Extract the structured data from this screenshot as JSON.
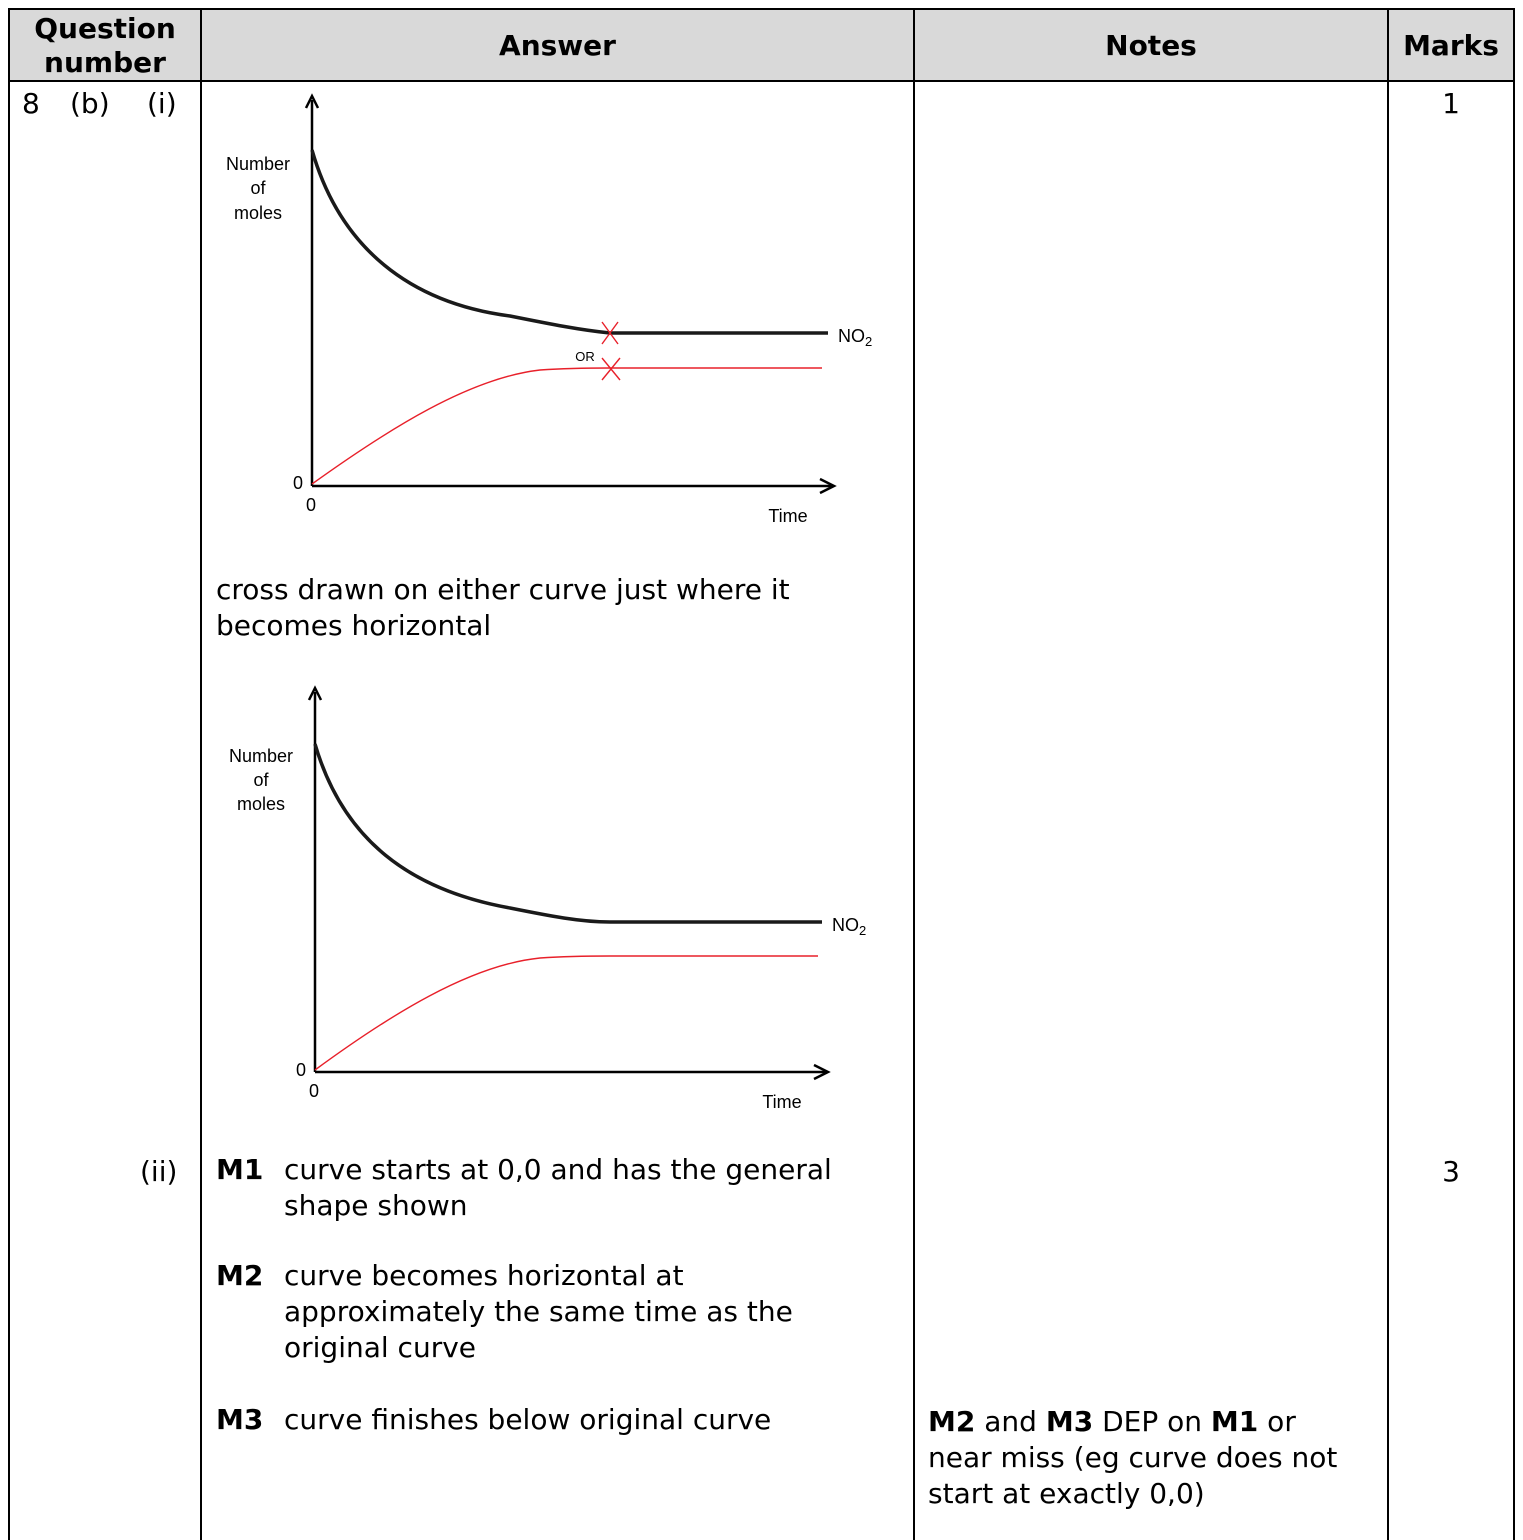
{
  "header": {
    "question_number": "Question number",
    "answer": "Answer",
    "notes": "Notes",
    "marks": "Marks"
  },
  "question": {
    "number": "8",
    "part": "(b)",
    "sub_i": "(i)",
    "sub_ii": "(ii)"
  },
  "graph1": {
    "ylabel": [
      "Number",
      "of",
      "moles"
    ],
    "xlabel": "Time",
    "origin_y": "0",
    "origin_x": "0",
    "series_label": "NO",
    "series_subscript": "2",
    "or_label": "OR"
  },
  "graph2": {
    "ylabel": [
      "Number",
      "of",
      "moles"
    ],
    "xlabel": "Time",
    "origin_y": "0",
    "origin_x": "0",
    "series_label": "NO",
    "series_subscript": "2"
  },
  "part_i_answer": [
    "cross drawn on either curve just where it",
    "becomes horizontal"
  ],
  "part_i_marks": "1",
  "part_ii": {
    "m1_label": "M1",
    "m1_text": [
      "curve starts at 0,0 and has the general",
      "shape shown"
    ],
    "m2_label": "M2",
    "m2_text": [
      "curve becomes horizontal at",
      "approximately the same time as the",
      "original curve"
    ],
    "m3_label": "M3",
    "m3_text": "curve finishes below original curve",
    "marks": "3",
    "note": {
      "b1": "M2",
      "t1": " and ",
      "b2": "M3",
      "t2": " DEP on ",
      "b3": "M1",
      "t3": " or",
      "line2": "near miss (eg curve does not",
      "line3": "start at exactly 0,0)"
    }
  },
  "colors": {
    "black_curve": "#1a1a1a",
    "red_curve": "#e8202a",
    "cross": "#e8202a",
    "header_bg": "#d9d9d9"
  }
}
